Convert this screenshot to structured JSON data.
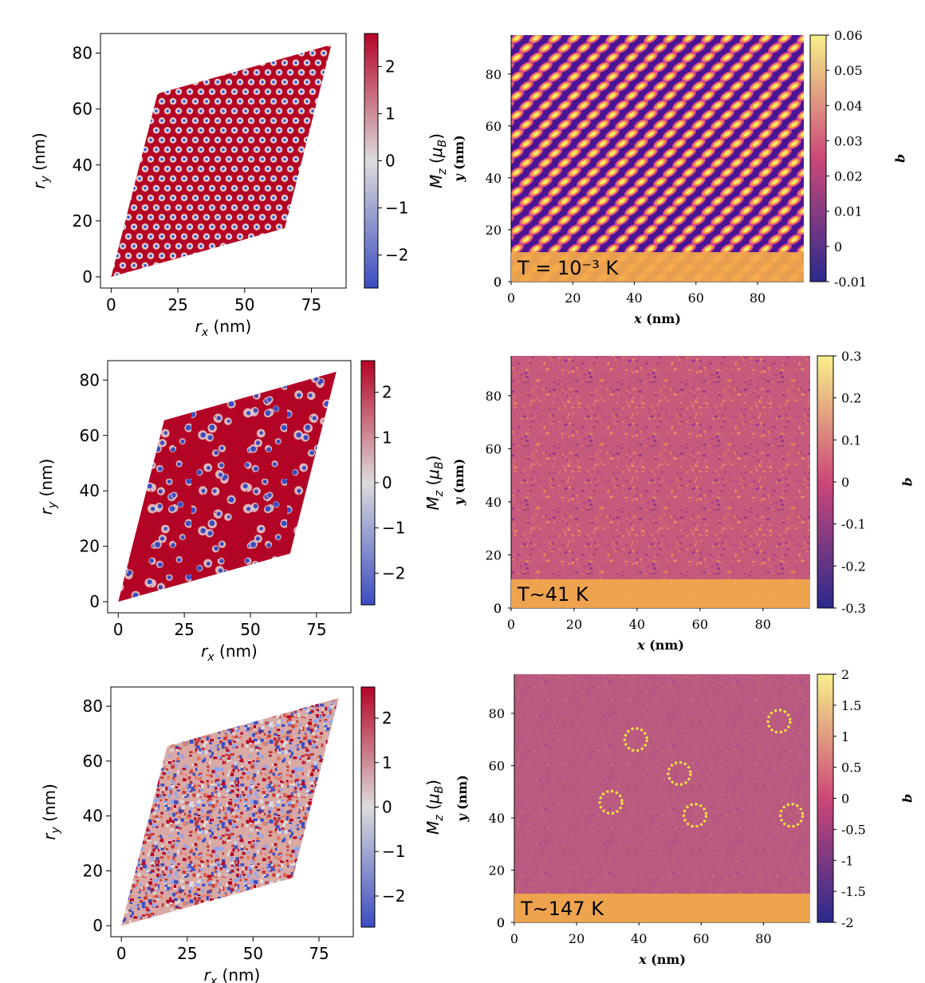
{
  "chart_data": [
    {
      "type": "heatmap",
      "title": "",
      "xlabel": "r_x (nm)",
      "ylabel": "r_y (nm)",
      "xlim": [
        -4,
        88
      ],
      "ylim": [
        -4,
        87
      ],
      "xticks": [
        0,
        25,
        50,
        75
      ],
      "yticks": [
        0,
        20,
        40,
        60,
        80
      ],
      "domain": [
        [
          0,
          0
        ],
        [
          65,
          17.4
        ],
        [
          82.5,
          83
        ],
        [
          17.4,
          65.5
        ]
      ],
      "colorbar_label": "M_z (μ_B)",
      "colorbar_range": [
        -2.7,
        2.7
      ],
      "colorbar_ticks": [
        "2",
        "1",
        "0",
        "−1",
        "−2"
      ],
      "colorbar_values": [
        2,
        1,
        0,
        -1,
        -2
      ],
      "colormap": "coolwarm",
      "pattern": "hexagonal skyrmion lattice"
    },
    {
      "type": "heatmap",
      "title": "",
      "xlabel": "x",
      "xunit": "(nm)",
      "ylabel": "y",
      "yunit": "(nm)",
      "xlim": [
        0,
        95
      ],
      "ylim": [
        0,
        95
      ],
      "xticks": [
        0,
        20,
        40,
        60,
        80
      ],
      "yticks": [
        0,
        20,
        40,
        60,
        80
      ],
      "annotation": "T = 10⁻³ K",
      "colorbar_label": "q",
      "colorbar_range": [
        -0.01,
        0.06
      ],
      "colorbar_ticks": [
        "0.06",
        "0.05",
        "0.04",
        "0.03",
        "0.02",
        "0.01",
        "0",
        "-0.01"
      ],
      "colorbar_values": [
        0.06,
        0.05,
        0.04,
        0.03,
        0.02,
        0.01,
        0,
        -0.01
      ],
      "colormap": "plasma",
      "pattern": "ordered elliptical spots"
    },
    {
      "type": "heatmap",
      "title": "",
      "xlabel": "r_x (nm)",
      "ylabel": "r_y (nm)",
      "xlim": [
        -4,
        88
      ],
      "ylim": [
        -4,
        87
      ],
      "xticks": [
        0,
        25,
        50,
        75
      ],
      "yticks": [
        0,
        20,
        40,
        60,
        80
      ],
      "domain": [
        [
          0,
          0
        ],
        [
          65,
          17.4
        ],
        [
          82.5,
          83
        ],
        [
          17.4,
          65.5
        ]
      ],
      "colorbar_label": "M_z (μ_B)",
      "colorbar_range": [
        -2.7,
        2.7
      ],
      "colorbar_ticks": [
        "2",
        "1",
        "0",
        "−1",
        "−2"
      ],
      "colorbar_values": [
        2,
        1,
        0,
        -1,
        -2
      ],
      "colormap": "coolwarm",
      "pattern": "disordered skyrmions"
    },
    {
      "type": "heatmap",
      "title": "",
      "xlabel": "x",
      "xunit": "(nm)",
      "ylabel": "y",
      "yunit": "(nm)",
      "xlim": [
        0,
        95
      ],
      "ylim": [
        0,
        95
      ],
      "xticks": [
        0,
        20,
        40,
        60,
        80
      ],
      "yticks": [
        0,
        20,
        40,
        60,
        80
      ],
      "annotation": "T∼41 K",
      "colorbar_label": "q",
      "colorbar_range": [
        -0.3,
        0.3
      ],
      "colorbar_ticks": [
        "0.3",
        "0.2",
        "0.1",
        "0",
        "-0.1",
        "-0.2",
        "-0.3"
      ],
      "colorbar_values": [
        0.3,
        0.2,
        0.1,
        0,
        -0.1,
        -0.2,
        -0.3
      ],
      "colormap": "plasma",
      "pattern": "noisy"
    },
    {
      "type": "heatmap",
      "title": "",
      "xlabel": "r_x (nm)",
      "ylabel": "r_y (nm)",
      "xlim": [
        -4,
        88
      ],
      "ylim": [
        -4,
        87
      ],
      "xticks": [
        0,
        25,
        50,
        75
      ],
      "yticks": [
        0,
        20,
        40,
        60,
        80
      ],
      "domain": [
        [
          0,
          0
        ],
        [
          65,
          17.4
        ],
        [
          82.5,
          83
        ],
        [
          17.4,
          65.5
        ]
      ],
      "colorbar_label": "M_z (μ_B)",
      "colorbar_range": [
        -2.7,
        2.7
      ],
      "colorbar_ticks": [
        "2",
        "1",
        "0",
        "−1",
        "−2"
      ],
      "colorbar_values": [
        2,
        1,
        0,
        -1,
        -2
      ],
      "colormap": "coolwarm",
      "pattern": "random spin noise"
    },
    {
      "type": "heatmap",
      "title": "",
      "xlabel": "x",
      "xunit": "(nm)",
      "ylabel": "y",
      "yunit": "(nm)",
      "xlim": [
        0,
        95
      ],
      "ylim": [
        0,
        95
      ],
      "xticks": [
        0,
        20,
        40,
        60,
        80
      ],
      "yticks": [
        0,
        20,
        40,
        60,
        80
      ],
      "annotation": "T∼147 K",
      "colorbar_label": "q",
      "colorbar_range": [
        -2,
        2
      ],
      "colorbar_ticks": [
        "2",
        "1.5",
        "1",
        "0.5",
        "0",
        "-0.5",
        "-1",
        "-1.5",
        "-2"
      ],
      "colorbar_values": [
        2,
        1.5,
        1,
        0.5,
        0,
        -0.5,
        -1,
        -1.5,
        -2
      ],
      "colormap": "plasma",
      "pattern": "noise with isolated features",
      "circles": [
        {
          "x": 39,
          "y": 70
        },
        {
          "x": 85,
          "y": 77
        },
        {
          "x": 53,
          "y": 57
        },
        {
          "x": 31,
          "y": 46
        },
        {
          "x": 58,
          "y": 41
        },
        {
          "x": 89,
          "y": 41
        }
      ]
    }
  ],
  "colors": {
    "coolwarm_high": "#b40426",
    "coolwarm_mid": "#dddcdc",
    "coolwarm_low": "#3b4cc0",
    "plasma_low": "#2a2a8c",
    "plasma_mid": "#cc4778",
    "plasma_high": "#f7f08a",
    "banner": "#f2a94a",
    "circle": "#ffe93a"
  }
}
